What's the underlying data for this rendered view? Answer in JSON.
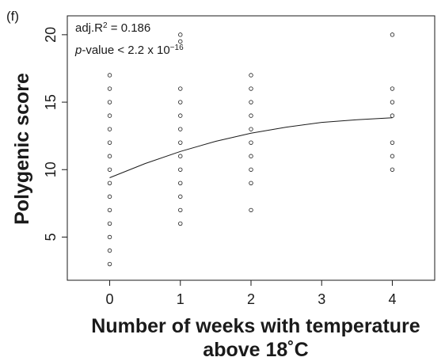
{
  "panel_label": "(f)",
  "chart_data": {
    "type": "scatter",
    "xlabel_line1": "Number of weeks with temperature",
    "xlabel_line2": "above 18˚C",
    "ylabel": "Polygenic score",
    "xlim": [
      -0.6,
      4.6
    ],
    "ylim": [
      1.8,
      21.4
    ],
    "x_ticks": [
      0,
      1,
      2,
      3,
      4
    ],
    "y_ticks": [
      5,
      10,
      15,
      20
    ],
    "grid": false,
    "annotations": {
      "r2_prefix": "adj.R",
      "r2_sup": "2",
      "r2_value": " = 0.186",
      "p_italic": "p",
      "p_text": "-value < 2.2 x 10",
      "p_sup": "−16"
    },
    "points": [
      {
        "x": 0,
        "y": [
          3,
          4,
          5,
          6,
          7,
          8,
          9,
          10,
          11,
          12,
          13,
          14,
          15,
          16,
          17
        ]
      },
      {
        "x": 1,
        "y": [
          6,
          7,
          8,
          9,
          10,
          11,
          12,
          13,
          14,
          15,
          16,
          19.5,
          20
        ]
      },
      {
        "x": 2,
        "y": [
          7,
          9,
          10,
          11,
          12,
          13,
          14,
          15,
          16,
          17
        ]
      },
      {
        "x": 4,
        "y": [
          10,
          11,
          12,
          14,
          15,
          16,
          20
        ]
      }
    ],
    "fit_line": {
      "x": [
        0,
        0.5,
        1,
        1.5,
        2,
        2.5,
        3,
        3.5,
        4
      ],
      "y": [
        9.4,
        10.45,
        11.35,
        12.1,
        12.7,
        13.15,
        13.5,
        13.7,
        13.85
      ]
    }
  }
}
